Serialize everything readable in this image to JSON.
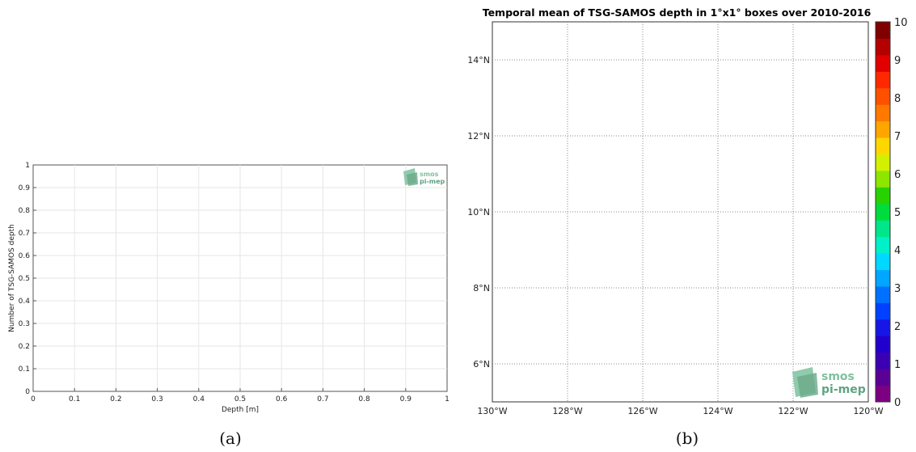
{
  "chart_data": [
    {
      "type": "bar",
      "title": "",
      "xlabel": "Depth [m]",
      "ylabel": "Number of TSG-SAMOS depth",
      "xlim": [
        0,
        1
      ],
      "ylim": [
        0,
        1
      ],
      "xticks": [
        "0",
        "0.1",
        "0.2",
        "0.3",
        "0.4",
        "0.5",
        "0.6",
        "0.7",
        "0.8",
        "0.9",
        "1"
      ],
      "yticks": [
        "0",
        "0.1",
        "0.2",
        "0.3",
        "0.4",
        "0.5",
        "0.6",
        "0.7",
        "0.8",
        "0.9",
        "1"
      ],
      "grid": true,
      "series": [],
      "logo": {
        "line1": "smos",
        "line2": "pi-mep"
      },
      "caption": "(a)"
    },
    {
      "type": "heatmap",
      "title": "Temporal mean of TSG-SAMOS depth in 1°x1° boxes over 2010-2016",
      "lon_range": [
        -130,
        -120
      ],
      "lat_range": [
        5,
        15
      ],
      "xticks": [
        "130°W",
        "128°W",
        "126°W",
        "124°W",
        "122°W",
        "120°W"
      ],
      "yticks": [
        "6°N",
        "8°N",
        "10°N",
        "12°N",
        "14°N"
      ],
      "grid": true,
      "values": [],
      "colorbar": {
        "min": 0,
        "max": 10,
        "ticks": [
          "0",
          "1",
          "2",
          "3",
          "4",
          "5",
          "6",
          "7",
          "8",
          "9",
          "10"
        ],
        "colors": [
          "#7d0082",
          "#5a0096",
          "#3c00b4",
          "#2200cc",
          "#1616e6",
          "#0040ff",
          "#0070ff",
          "#00a6ff",
          "#00d8ff",
          "#00f0c8",
          "#00e68a",
          "#00dc3c",
          "#28d200",
          "#8ce600",
          "#d2f000",
          "#ffd700",
          "#ffa500",
          "#ff7800",
          "#ff5000",
          "#ff2800",
          "#e10000",
          "#b40000",
          "#800000"
        ]
      },
      "logo": {
        "line1": "smos",
        "line2": "pi-mep"
      },
      "caption": "(b)"
    }
  ]
}
